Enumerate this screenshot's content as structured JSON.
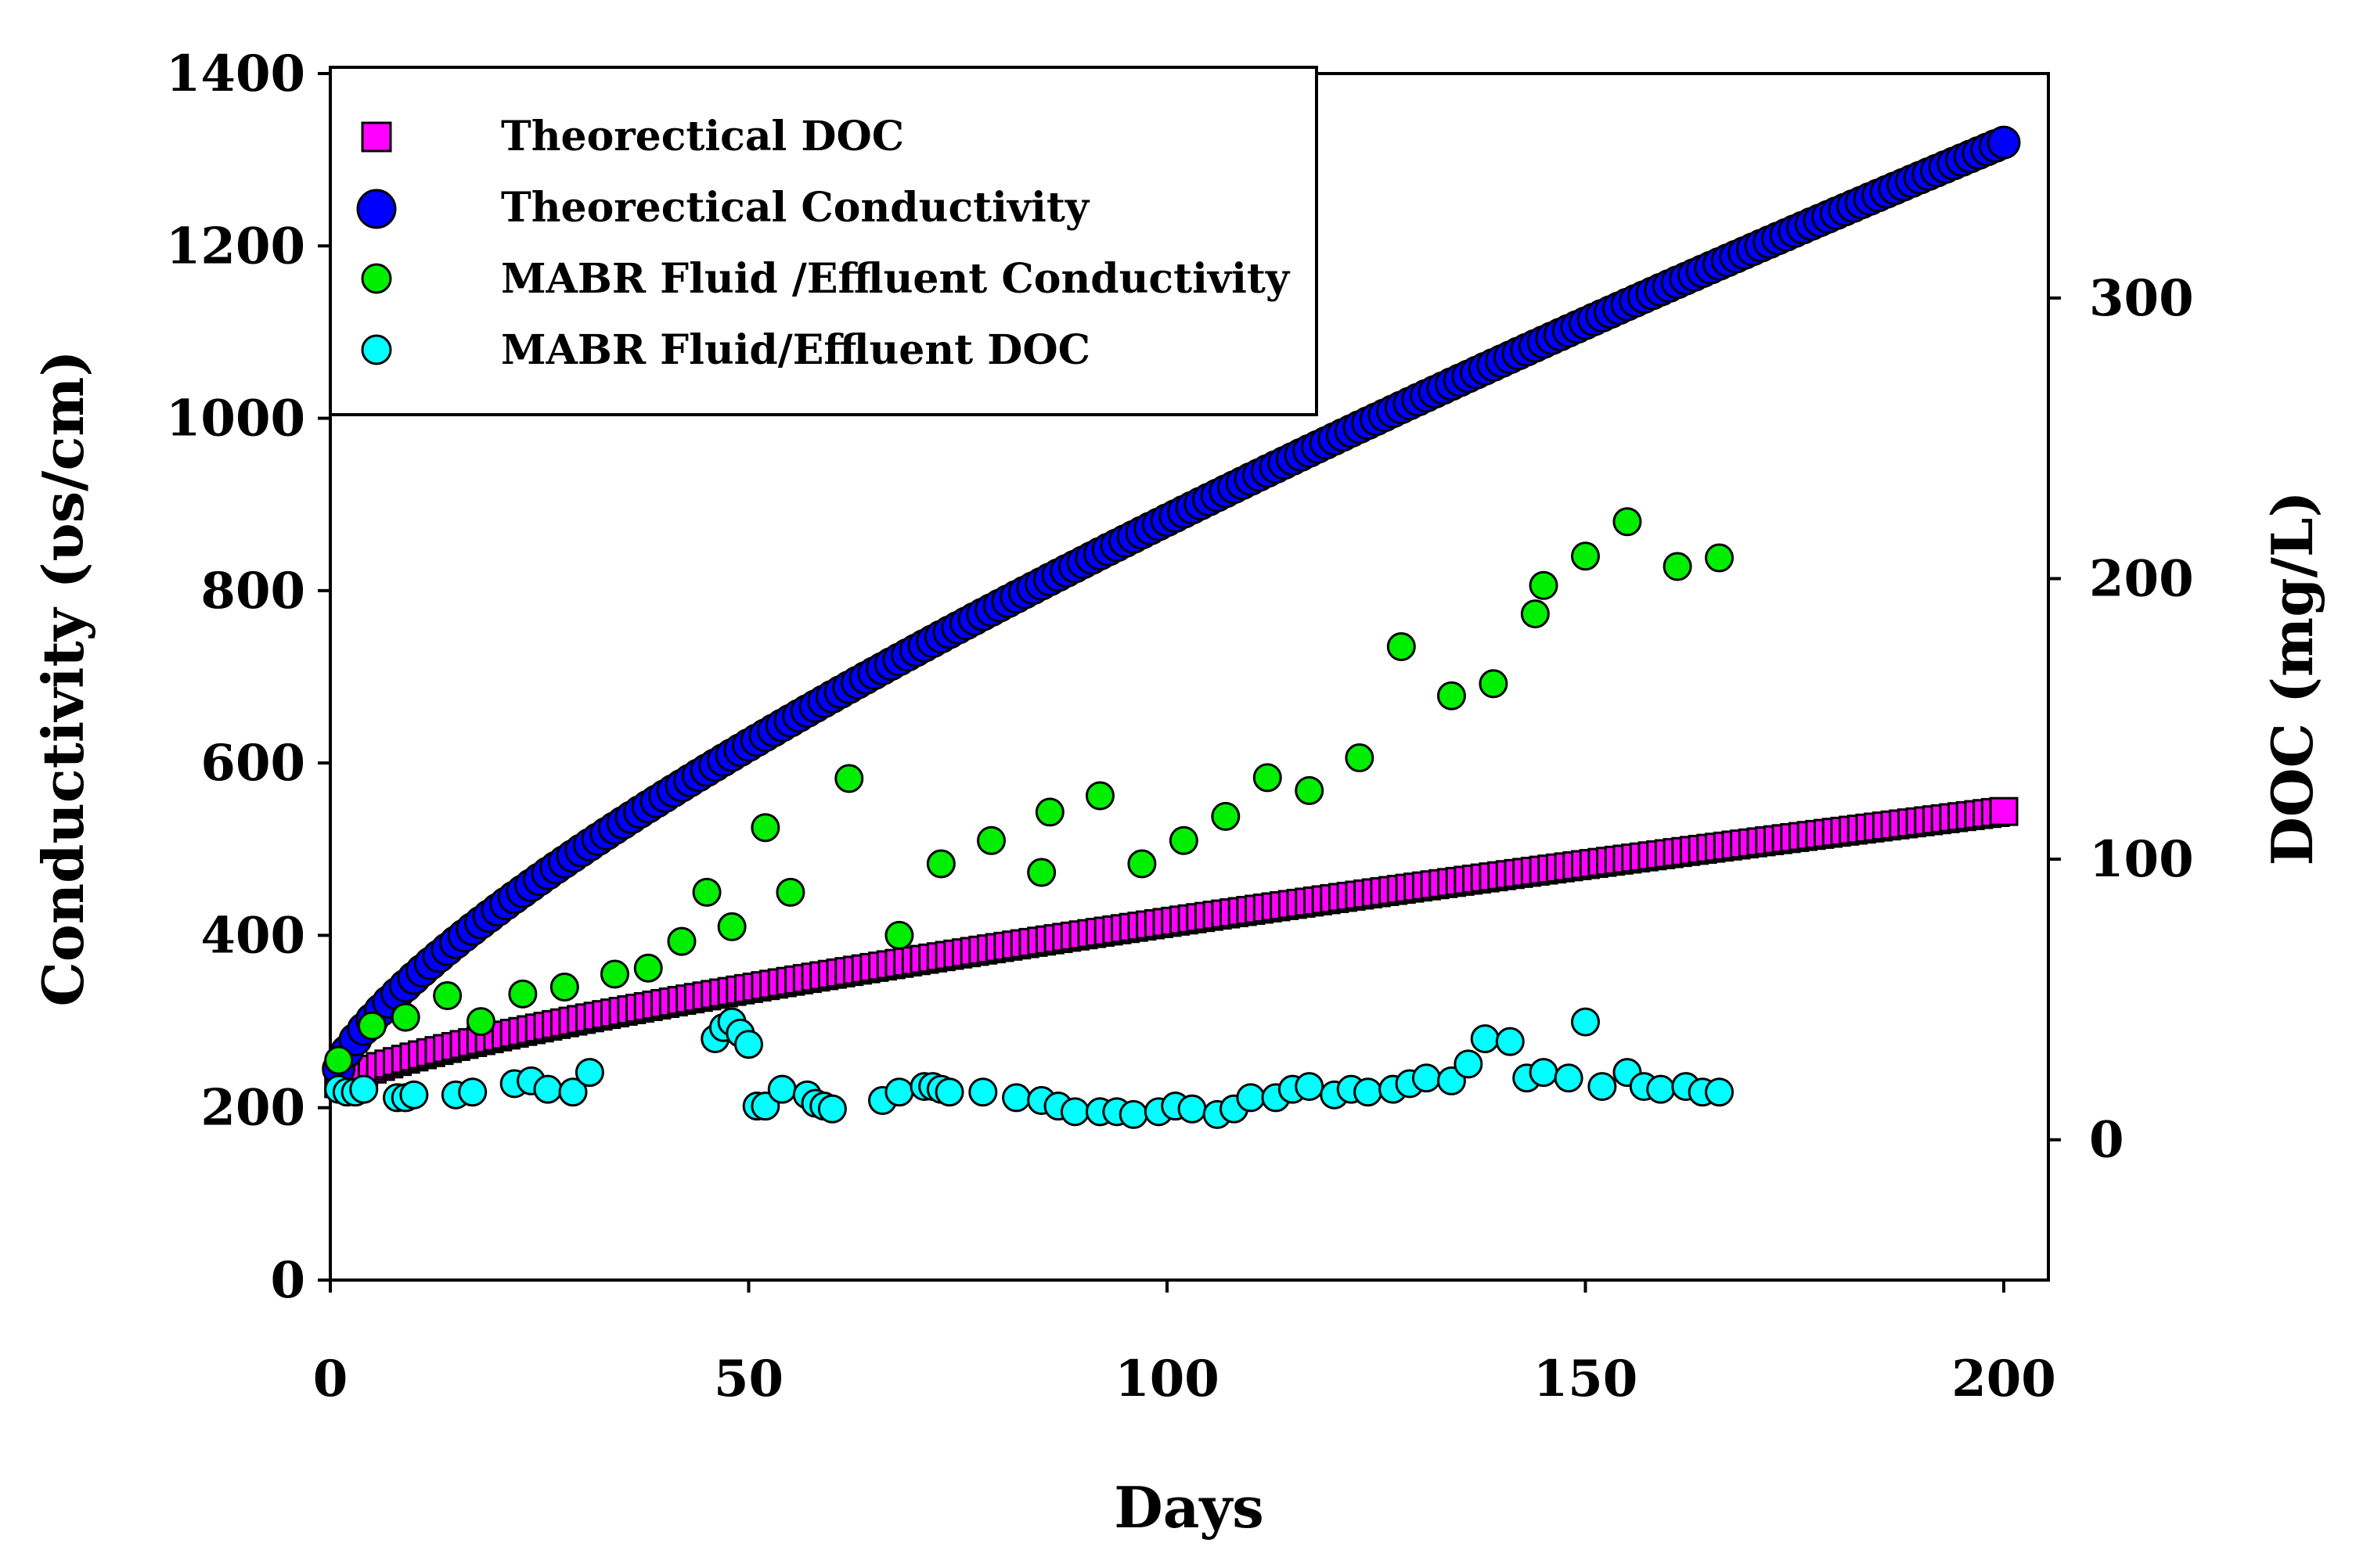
{
  "chart_data": {
    "type": "scatter",
    "xlabel": "Days",
    "ylabel": "Conductivity (υs/cm)",
    "y2label": "DOC (mg/L)",
    "xlim": [
      0,
      205
    ],
    "ylim": [
      0,
      1400
    ],
    "y2lim": [
      -50,
      380
    ],
    "xticks": [
      0,
      50,
      100,
      150,
      200
    ],
    "yticks": [
      0,
      200,
      400,
      600,
      800,
      1000,
      1200,
      1400
    ],
    "y2ticks": [
      0,
      100,
      200,
      300
    ],
    "legend_position": "top-left",
    "series": [
      {
        "name": "Theorectical DOC",
        "axis": "right",
        "marker": "square",
        "color": "#ff00ff",
        "x_start": 1,
        "x_end": 200,
        "x_step": 1,
        "y_start": 20,
        "y_end": 117,
        "curve_power": 0.75
      },
      {
        "name": "Theorectical Conductivity",
        "axis": "left",
        "marker": "circle",
        "color": "#0000ff",
        "x_start": 1,
        "x_end": 200,
        "x_step": 1,
        "y_start": 245,
        "y_end": 1320,
        "curve_power": 0.75
      },
      {
        "name": "MABR Fluid /Effluent Conductivity",
        "axis": "left",
        "marker": "circle",
        "color": "#00ee00",
        "x": [
          1,
          5,
          9,
          14,
          18,
          23,
          28,
          34,
          38,
          42,
          45,
          48,
          52,
          55,
          62,
          68,
          73,
          79,
          85,
          86,
          92,
          97,
          102,
          107,
          112,
          117,
          123,
          128,
          134,
          139,
          144,
          145,
          150,
          155,
          161,
          166
        ],
        "y": [
          255,
          295,
          305,
          330,
          300,
          332,
          340,
          355,
          362,
          393,
          450,
          410,
          525,
          450,
          582,
          400,
          483,
          510,
          473,
          543,
          562,
          483,
          510,
          538,
          583,
          568,
          606,
          735,
          678,
          692,
          773,
          806,
          840,
          880,
          828,
          838
        ]
      },
      {
        "name": "MABR Fluid/Effluent DOC",
        "axis": "right",
        "marker": "circle",
        "color": "#00ffff",
        "x": [
          1,
          2,
          3,
          4,
          8,
          9,
          10,
          15,
          17,
          22,
          24,
          26,
          29,
          31,
          46,
          47,
          48,
          49,
          50,
          51,
          52,
          54,
          57,
          58,
          59,
          60,
          66,
          68,
          71,
          72,
          73,
          74,
          78,
          82,
          85,
          87,
          89,
          92,
          94,
          96,
          99,
          101,
          103,
          106,
          108,
          110,
          113,
          115,
          117,
          120,
          122,
          124,
          127,
          129,
          131,
          134,
          136,
          138,
          141,
          143,
          145,
          148,
          150,
          152,
          155,
          157,
          159,
          162,
          164,
          166
        ],
        "y": [
          18,
          17,
          17,
          18,
          15,
          15,
          16,
          16,
          17,
          20,
          21,
          18,
          17,
          24,
          36,
          40,
          42,
          38,
          34,
          12,
          12,
          18,
          16,
          13,
          12,
          11,
          14,
          17,
          19,
          19,
          18,
          17,
          17,
          15,
          14,
          12,
          10,
          10,
          10,
          9,
          10,
          12,
          11,
          9,
          11,
          15,
          15,
          18,
          19,
          16,
          18,
          17,
          18,
          20,
          22,
          21,
          27,
          36,
          35,
          22,
          24,
          22,
          42,
          19,
          24,
          19,
          18,
          19,
          17,
          17
        ]
      }
    ]
  }
}
